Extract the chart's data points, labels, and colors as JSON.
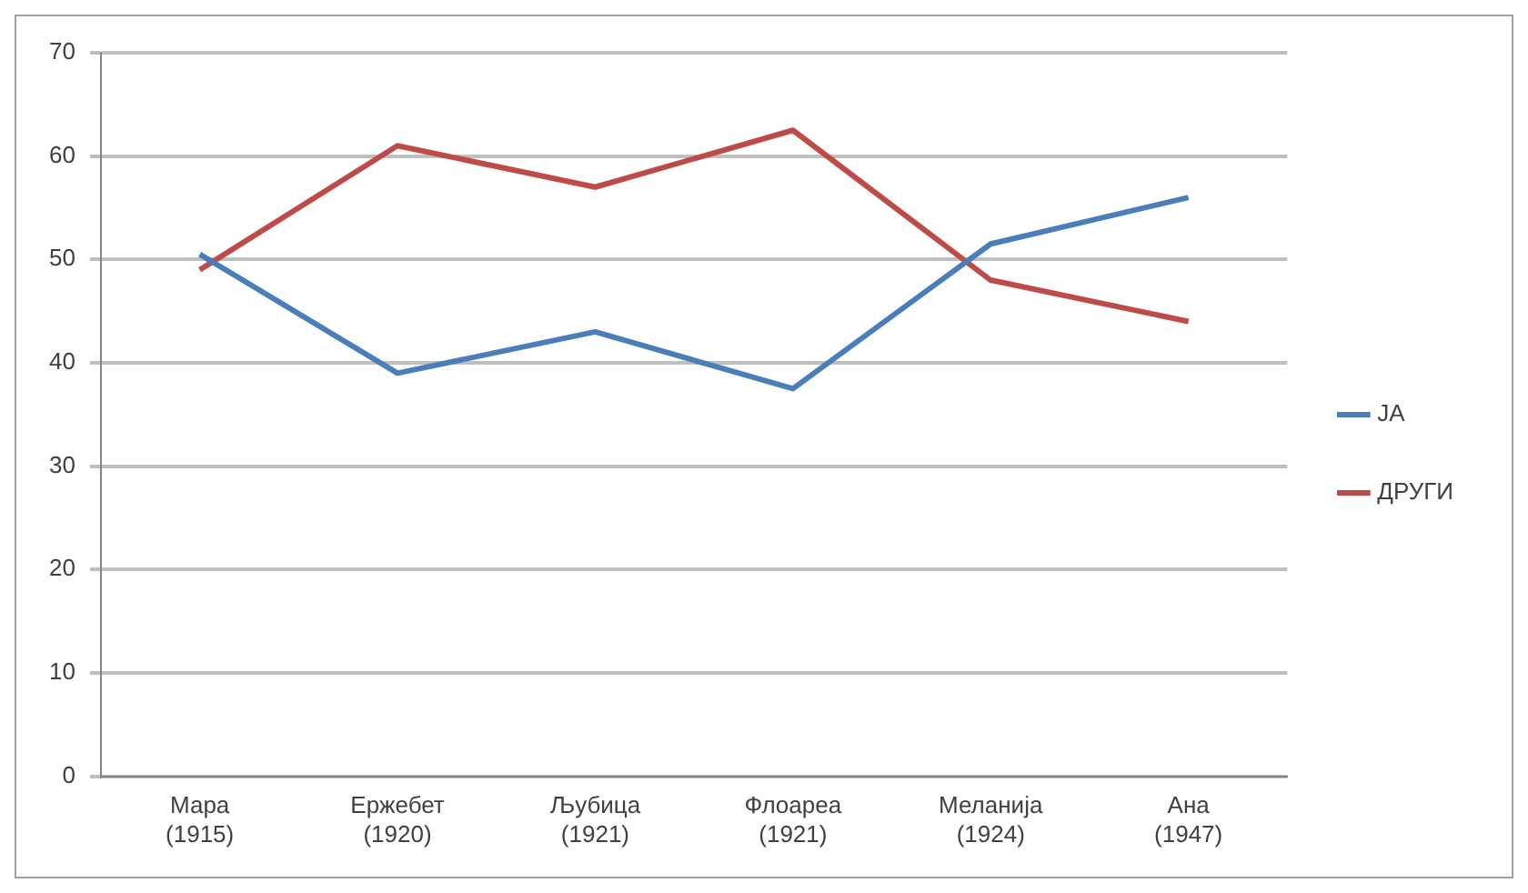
{
  "chart_data": {
    "type": "line",
    "categories": [
      "Мара\n(1915)",
      "Ержебет\n(1920)",
      "Љубица\n(1921)",
      "Флоареа\n(1921)",
      "Меланија\n(1924)",
      "Ана\n(1947)"
    ],
    "series": [
      {
        "name": "ЈА",
        "color": "#4a7ebb",
        "values": [
          50.5,
          39,
          43,
          37.5,
          51.5,
          56
        ]
      },
      {
        "name": "ДРУГИ",
        "color": "#be4b48",
        "values": [
          49,
          61,
          57,
          62.5,
          48,
          44
        ]
      }
    ],
    "ylim": [
      0,
      70
    ],
    "yticks": [
      0,
      10,
      20,
      30,
      40,
      50,
      60,
      70
    ],
    "grid": "y",
    "legend": "right",
    "marker": "none",
    "line_style": "solid"
  }
}
